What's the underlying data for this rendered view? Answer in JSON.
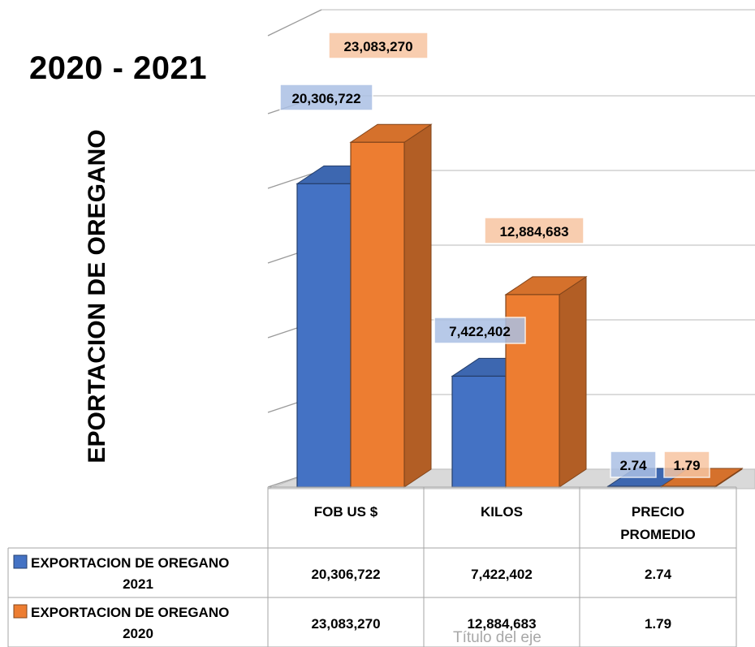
{
  "title": "2020 - 2021",
  "ylabel": "EPORTACION DE OREGANO",
  "xaxis_title": "Título del eje",
  "colors": {
    "series_2021": "#4472c4",
    "series_2020": "#ed7d31"
  },
  "chart_data": {
    "type": "bar",
    "title": "2020 - 2021",
    "ylabel": "EPORTACION DE OREGANO",
    "xlabel": "Título del eje",
    "categories": [
      "FOB US $",
      "KILOS",
      "PRECIO PROMEDIO"
    ],
    "series": [
      {
        "name": "EXPORTACION DE OREGANO 2021",
        "values": [
          20306722,
          7422402,
          2.74
        ],
        "labels": [
          "20,306,722",
          "7,422,402",
          "2.74"
        ]
      },
      {
        "name": "EXPORTACION DE OREGANO 2020",
        "values": [
          23083270,
          12884683,
          1.79
        ],
        "labels": [
          "23,083,270",
          "12,884,683",
          "1.79"
        ]
      }
    ],
    "ylim": [
      0,
      25000000
    ],
    "grid": true,
    "legend": "data table below chart",
    "style": "3d clustered column"
  }
}
